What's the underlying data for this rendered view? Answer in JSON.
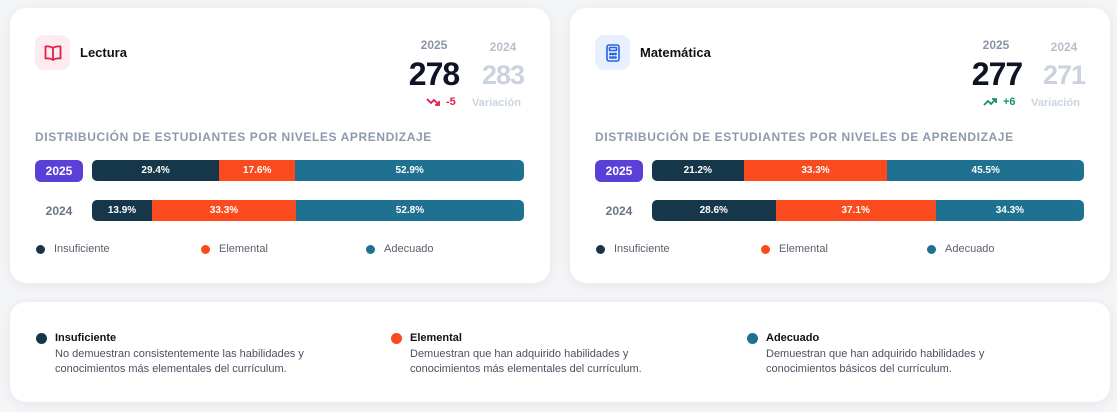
{
  "colors": {
    "insuficiente": "#163649",
    "elemental": "#fa4a1e",
    "adecuado": "#1e7190",
    "badge_active": "#5b3fd9"
  },
  "dist_title_lectura": "DISTRIBUCIÓN DE ESTUDIANTES POR NIVELES APRENDIZAJE",
  "dist_title_mate": "DISTRIBUCIÓN DE ESTUDIANTES POR NIVELES DE APRENDIZAJE",
  "legend": {
    "insuficiente": "Insuficiente",
    "elemental": "Elemental",
    "adecuado": "Adecuado"
  },
  "lectura": {
    "name": "Lectura",
    "icon": "book-open-icon",
    "year_current": "2025",
    "year_prev": "2024",
    "score_current": "278",
    "score_prev": "283",
    "delta": "-5",
    "delta_label": "Variación",
    "rows": [
      {
        "year": "2025",
        "ins": 29.4,
        "ele": 17.6,
        "ade": 52.9,
        "ins_label": "29.4%",
        "ele_label": "17.6%",
        "ade_label": "52.9%"
      },
      {
        "year": "2024",
        "ins": 13.9,
        "ele": 33.3,
        "ade": 52.8,
        "ins_label": "13.9%",
        "ele_label": "33.3%",
        "ade_label": "52.8%"
      }
    ]
  },
  "matematica": {
    "name": "Matemática",
    "icon": "calculator-icon",
    "year_current": "2025",
    "year_prev": "2024",
    "score_current": "277",
    "score_prev": "271",
    "delta": "+6",
    "delta_label": "Variación",
    "rows": [
      {
        "year": "2025",
        "ins": 21.2,
        "ele": 33.3,
        "ade": 45.5,
        "ins_label": "21.2%",
        "ele_label": "33.3%",
        "ade_label": "45.5%"
      },
      {
        "year": "2024",
        "ins": 28.6,
        "ele": 37.1,
        "ade": 34.3,
        "ins_label": "28.6%",
        "ele_label": "37.1%",
        "ade_label": "34.3%"
      }
    ]
  },
  "definitions": [
    {
      "title": "Insuficiente",
      "line1": "No demuestran consistentemente las habilidades y",
      "line2": "conocimientos más elementales del currículum."
    },
    {
      "title": "Elemental",
      "line1": "Demuestran que han adquirido habilidades y",
      "line2": "conocimientos más elementales del currículum."
    },
    {
      "title": "Adecuado",
      "line1": "Demuestran que han adquirido habilidades y",
      "line2": "conocimientos básicos del currículum."
    }
  ]
}
